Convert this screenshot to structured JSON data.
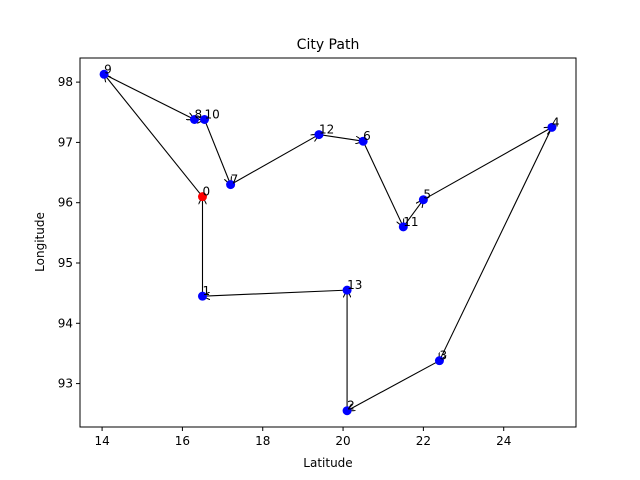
{
  "chart_data": {
    "type": "scatter",
    "title": "City Path",
    "xlabel": "Latitude",
    "ylabel": "Longitude",
    "xlim": [
      13.45,
      25.8
    ],
    "ylim": [
      92.28,
      98.4
    ],
    "xticks": [
      14,
      16,
      18,
      20,
      22,
      24
    ],
    "yticks": [
      93,
      94,
      95,
      96,
      97,
      98
    ],
    "grid": false,
    "start_color": "#ff0000",
    "point_color": "#0000ff",
    "arrow_color": "#000000",
    "points": [
      {
        "label": "0",
        "x": 16.5,
        "y": 96.1
      },
      {
        "label": "1",
        "x": 16.5,
        "y": 94.45
      },
      {
        "label": "2",
        "x": 20.1,
        "y": 92.55
      },
      {
        "label": "3",
        "x": 22.4,
        "y": 93.38
      },
      {
        "label": "4",
        "x": 25.2,
        "y": 97.25
      },
      {
        "label": "5",
        "x": 22.0,
        "y": 96.05
      },
      {
        "label": "6",
        "x": 20.5,
        "y": 97.02
      },
      {
        "label": "7",
        "x": 17.2,
        "y": 96.3
      },
      {
        "label": "8",
        "x": 16.3,
        "y": 97.38
      },
      {
        "label": "9",
        "x": 14.05,
        "y": 98.13
      },
      {
        "label": "10",
        "x": 16.55,
        "y": 97.38
      },
      {
        "label": "11",
        "x": 21.5,
        "y": 95.6
      },
      {
        "label": "12",
        "x": 19.4,
        "y": 97.13
      },
      {
        "label": "13",
        "x": 20.1,
        "y": 94.55
      }
    ],
    "path": [
      "0",
      "9",
      "8",
      "10",
      "7",
      "12",
      "6",
      "11",
      "5",
      "4",
      "3",
      "2",
      "13",
      "1",
      "0"
    ]
  }
}
